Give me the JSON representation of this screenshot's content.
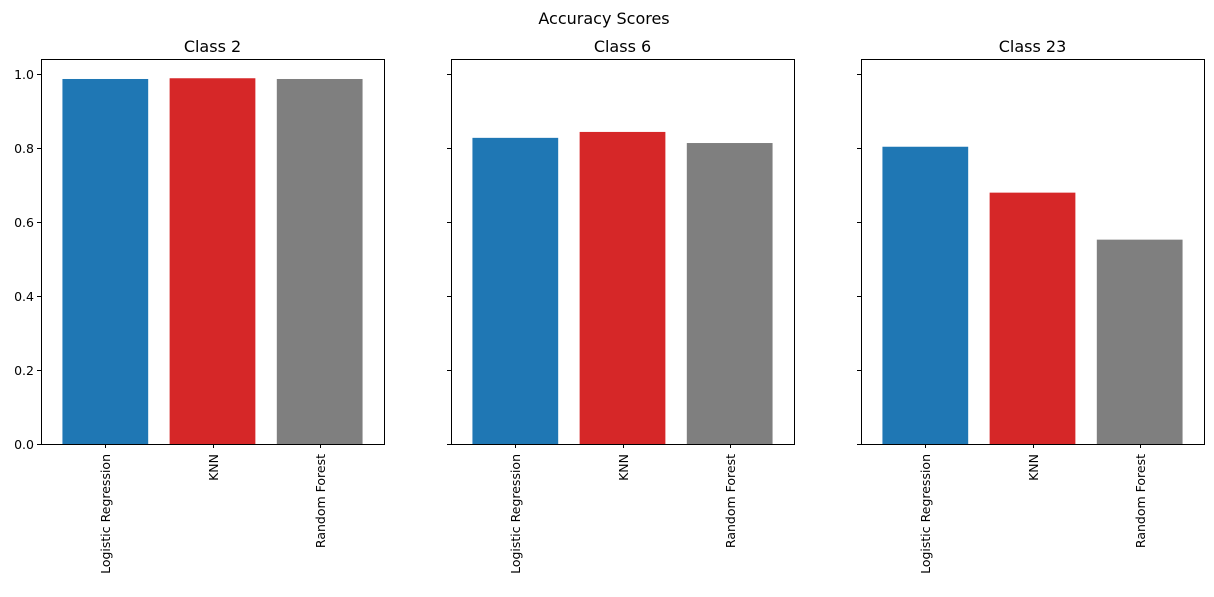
{
  "figure": {
    "suptitle": "Accuracy Scores"
  },
  "chart_data": [
    {
      "type": "bar",
      "title": "Class 2",
      "categories": [
        "Logistic Regression",
        "KNN",
        "Random Forest"
      ],
      "values": [
        0.986,
        0.988,
        0.986
      ],
      "colors": [
        "#1f77b4",
        "#d62728",
        "#7f7f7f"
      ],
      "ylim": [
        0,
        1.04
      ],
      "yticks": [
        0.0,
        0.2,
        0.4,
        0.6,
        0.8,
        1.0
      ],
      "ytick_labels": [
        "0.0",
        "0.2",
        "0.4",
        "0.6",
        "0.8",
        "1.0"
      ],
      "show_ytick_labels": true,
      "xlabel": "",
      "ylabel": "",
      "grid": false
    },
    {
      "type": "bar",
      "title": "Class 6",
      "categories": [
        "Logistic Regression",
        "KNN",
        "Random Forest"
      ],
      "values": [
        0.827,
        0.843,
        0.813
      ],
      "colors": [
        "#1f77b4",
        "#d62728",
        "#7f7f7f"
      ],
      "ylim": [
        0,
        1.04
      ],
      "yticks": [
        0.0,
        0.2,
        0.4,
        0.6,
        0.8,
        1.0
      ],
      "ytick_labels": [
        "0.0",
        "0.2",
        "0.4",
        "0.6",
        "0.8",
        "1.0"
      ],
      "show_ytick_labels": false,
      "xlabel": "",
      "ylabel": "",
      "grid": false
    },
    {
      "type": "bar",
      "title": "Class 23",
      "categories": [
        "Logistic Regression",
        "KNN",
        "Random Forest"
      ],
      "values": [
        0.803,
        0.679,
        0.552
      ],
      "colors": [
        "#1f77b4",
        "#d62728",
        "#7f7f7f"
      ],
      "ylim": [
        0,
        1.04
      ],
      "yticks": [
        0.0,
        0.2,
        0.4,
        0.6,
        0.8,
        1.0
      ],
      "ytick_labels": [
        "0.0",
        "0.2",
        "0.4",
        "0.6",
        "0.8",
        "1.0"
      ],
      "show_ytick_labels": false,
      "xlabel": "",
      "ylabel": "",
      "grid": false
    }
  ]
}
